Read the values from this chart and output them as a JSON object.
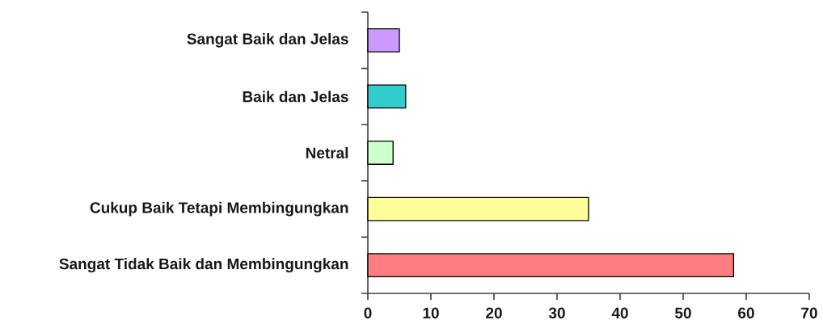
{
  "chart_data": {
    "type": "bar",
    "orientation": "horizontal",
    "categories": [
      "Sangat Baik dan Jelas",
      "Baik dan Jelas",
      "Netral",
      "Cukup Baik Tetapi Membingungkan",
      "Sangat Tidak Baik dan Membingungkan"
    ],
    "values": [
      5,
      6,
      4,
      35,
      58
    ],
    "colors": [
      "#cc99ff",
      "#33cccc",
      "#ccffcc",
      "#ffff99",
      "#ff7c80"
    ],
    "xlim": [
      0,
      70
    ],
    "xticks": [
      0,
      10,
      20,
      30,
      40,
      50,
      60,
      70
    ]
  }
}
